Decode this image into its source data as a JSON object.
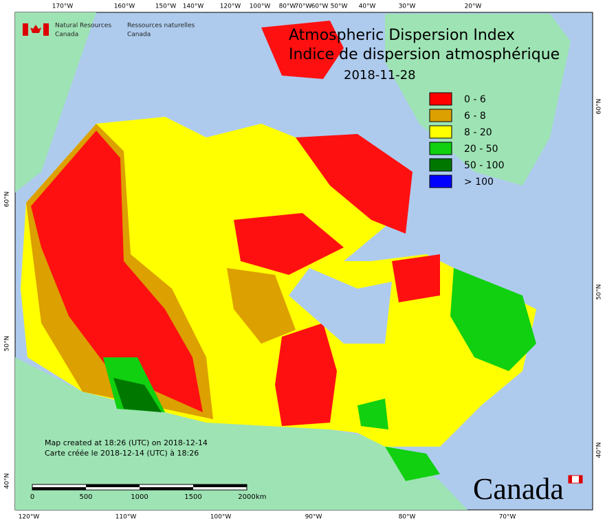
{
  "header": {
    "org_en": "Natural Resources",
    "org_en_2": "Canada",
    "org_fr": "Ressources naturelles",
    "org_fr_2": "Canada"
  },
  "title": {
    "en": "Atmospheric Dispersion Index",
    "fr": "Indice de dispersion atmosphérique",
    "date": "2018-11-28"
  },
  "legend": [
    {
      "label": "0 - 6",
      "color": "#ff0000"
    },
    {
      "label": "6 - 8",
      "color": "#dca000"
    },
    {
      "label": "8 - 20",
      "color": "#ffff00"
    },
    {
      "label": "20 - 50",
      "color": "#10d010"
    },
    {
      "label": "50 - 100",
      "color": "#007800"
    },
    {
      "label": "> 100",
      "color": "#0000ff"
    }
  ],
  "top_lon_labels": [
    "170°W",
    "160°W",
    "150°W",
    "140°W",
    "120°W",
    "100°W",
    "80°W",
    "70°W",
    "60°W",
    "50°W",
    "40°W",
    "30°W",
    "20°W"
  ],
  "bottom_lon_labels": [
    "120°W",
    "110°W",
    "100°W",
    "90°W",
    "80°W",
    "70°W"
  ],
  "left_lat_labels": [
    "60°N",
    "50°N",
    "40°N"
  ],
  "right_lat_labels": [
    "60°N",
    "50°N",
    "40°N"
  ],
  "notes": [
    "Map created at 18:26 (UTC) on 2018-12-14",
    "Carte créée le 2018-12-14 (UTC) à 18:26"
  ],
  "scale_bar": {
    "labels": [
      "0",
      "500",
      "1000",
      "1500",
      "2000"
    ],
    "unit": "km"
  },
  "wordmark": "Canada"
}
